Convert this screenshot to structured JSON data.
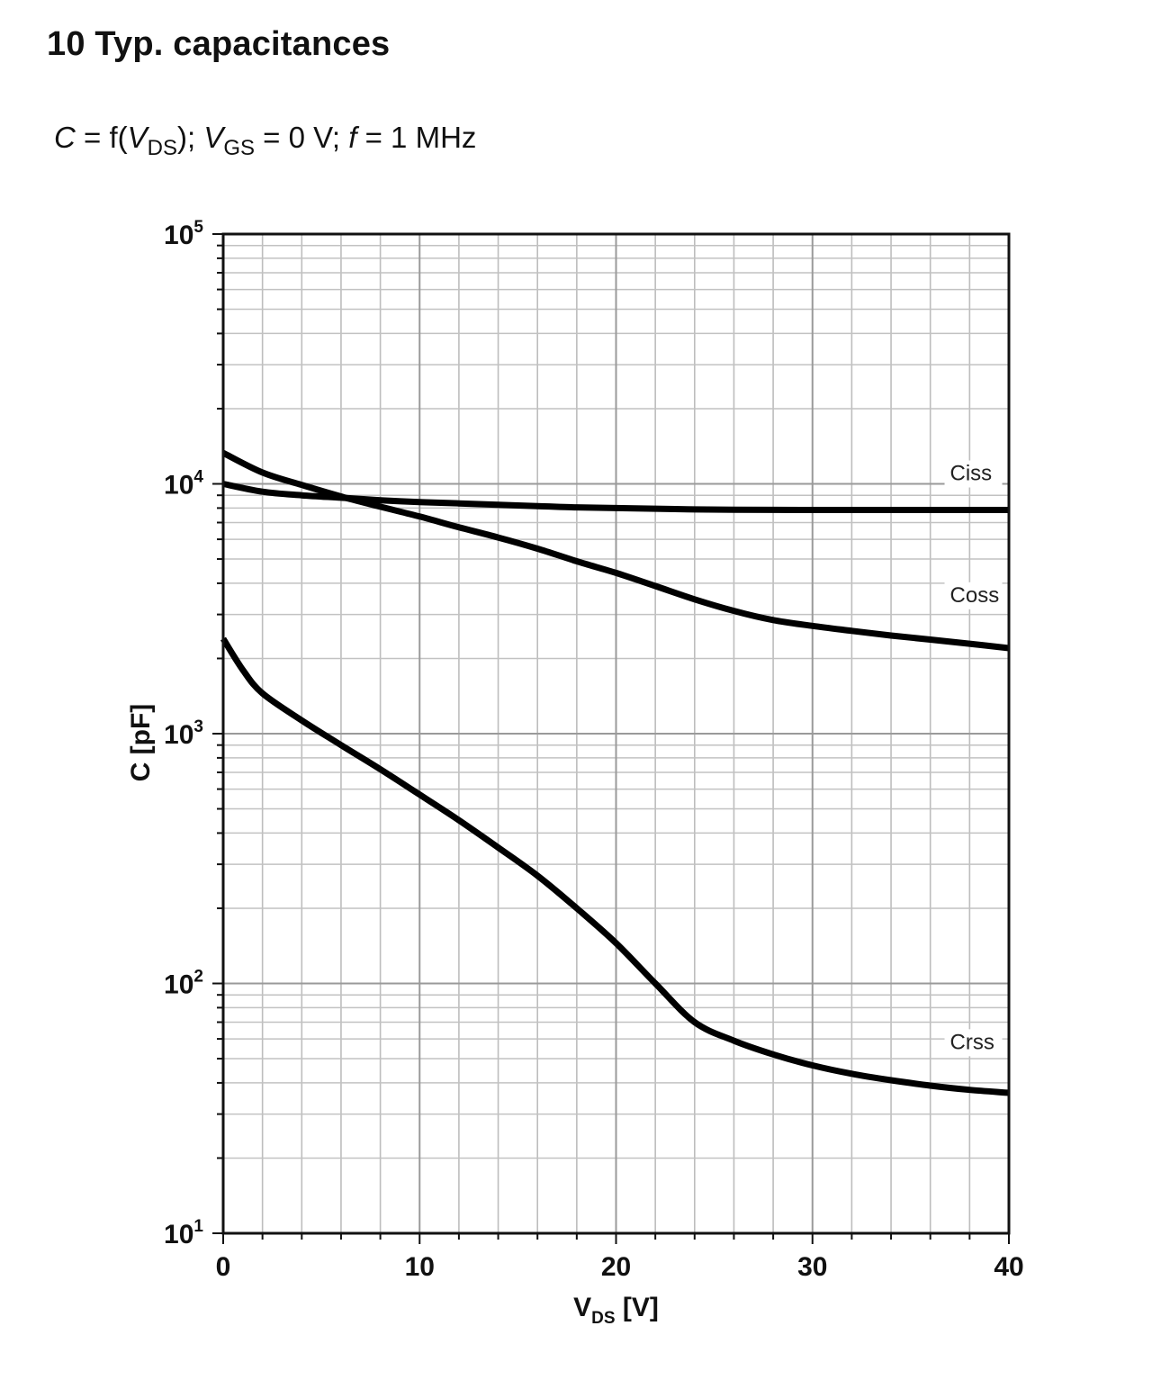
{
  "header": {
    "title": "10 Typ. capacitances",
    "subtitle": {
      "c_symbol": "C",
      "eq1": " = f(",
      "v_symbol": "V",
      "ds_sub": "DS",
      "sep": "); ",
      "v2_symbol": "V",
      "gs_sub": "GS",
      "eq2": " = 0 V; ",
      "f_symbol": "f",
      "eq3": " = 1 MHz"
    }
  },
  "chart_data": {
    "type": "line",
    "title": "10 Typ. capacitances",
    "subtitle": "C = f(VDS); VGS = 0 V; f = 1 MHz",
    "xlabel": {
      "main": "V",
      "sub": "DS",
      "unit": " [V]"
    },
    "ylabel": "C [pF]",
    "xlim": [
      0,
      40
    ],
    "ylim": [
      10,
      100000
    ],
    "yscale": "log",
    "grid": true,
    "xticks": [
      {
        "value": 0,
        "label": "0"
      },
      {
        "value": 10,
        "label": "10"
      },
      {
        "value": 20,
        "label": "20"
      },
      {
        "value": 30,
        "label": "30"
      },
      {
        "value": 40,
        "label": "40"
      }
    ],
    "yticks": [
      {
        "value": 100000,
        "base": "10",
        "exp": "5"
      },
      {
        "value": 10000,
        "base": "10",
        "exp": "4"
      },
      {
        "value": 1000,
        "base": "10",
        "exp": "3"
      },
      {
        "value": 100,
        "base": "10",
        "exp": "2"
      },
      {
        "value": 10,
        "base": "10",
        "exp": "1"
      }
    ],
    "series": [
      {
        "name": "Ciss",
        "label_at": 37,
        "x": [
          0,
          2,
          4,
          6,
          8,
          10,
          12,
          14,
          16,
          18,
          20,
          22,
          24,
          26,
          28,
          30,
          32,
          34,
          36,
          38,
          40
        ],
        "y": [
          10000,
          9300,
          9000,
          8800,
          8600,
          8450,
          8350,
          8250,
          8150,
          8050,
          8000,
          7950,
          7900,
          7880,
          7870,
          7860,
          7860,
          7860,
          7860,
          7860,
          7860
        ]
      },
      {
        "name": "Coss",
        "label_at": 37,
        "x": [
          0,
          2,
          4,
          6,
          8,
          10,
          12,
          14,
          16,
          18,
          20,
          22,
          24,
          26,
          28,
          30,
          32,
          34,
          36,
          38,
          40
        ],
        "y": [
          13300,
          11100,
          9900,
          8900,
          8100,
          7400,
          6700,
          6100,
          5500,
          4900,
          4400,
          3900,
          3450,
          3100,
          2850,
          2700,
          2580,
          2470,
          2380,
          2290,
          2200
        ]
      },
      {
        "name": "Crss",
        "label_at": 37,
        "x": [
          0,
          1,
          2,
          4,
          6,
          8,
          10,
          12,
          14,
          16,
          18,
          20,
          22,
          24,
          26,
          28,
          30,
          32,
          34,
          36,
          38,
          40
        ],
        "y": [
          2400,
          1800,
          1450,
          1130,
          900,
          720,
          570,
          450,
          350,
          270,
          200,
          145,
          100,
          70,
          59,
          52,
          47,
          43.5,
          41,
          39,
          37.5,
          36.5
        ]
      }
    ]
  }
}
